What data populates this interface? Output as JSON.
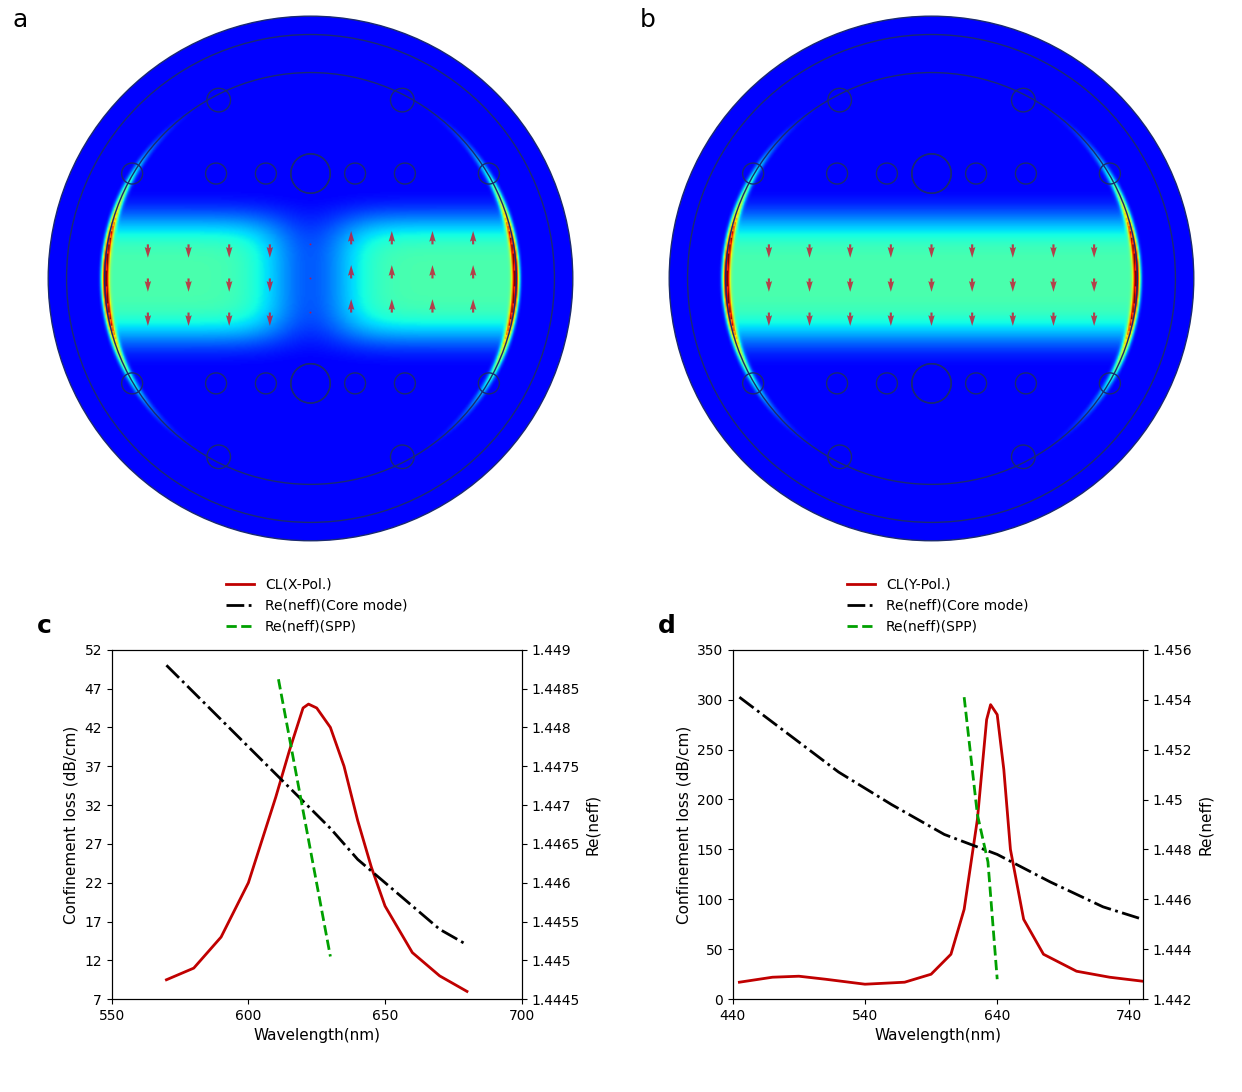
{
  "panel_labels": [
    "a",
    "b",
    "c",
    "d"
  ],
  "chart_data": [
    {
      "type": "line",
      "x_label": "Wavelength(nm)",
      "y_label": "Confinement loss (dB/cm)",
      "y2_label": "Re(neff)",
      "xlim": [
        550,
        700
      ],
      "xticks": [
        550,
        600,
        650,
        700
      ],
      "ylim": [
        7,
        52
      ],
      "yticks": [
        7,
        12,
        17,
        22,
        27,
        32,
        37,
        42,
        47,
        52
      ],
      "y2lim": [
        1.4445,
        1.449
      ],
      "y2ticks": [
        1.4445,
        1.445,
        1.4455,
        1.446,
        1.4465,
        1.447,
        1.4475,
        1.448,
        1.4485,
        1.449
      ],
      "grid": false,
      "legend": "top",
      "series": [
        {
          "name": "CL(X-Pol.)",
          "color": "#c00000",
          "line_style": "solid",
          "x": [
            570,
            580,
            590,
            600,
            610,
            615,
            620,
            622,
            625,
            630,
            635,
            640,
            645,
            650,
            660,
            670,
            680
          ],
          "values": [
            9.5,
            11,
            15,
            22,
            33,
            39,
            44.5,
            45,
            44.5,
            42,
            37,
            30,
            24,
            19,
            13,
            10,
            8
          ]
        },
        {
          "name": "Re(neff)(Core mode)",
          "color": "#000000",
          "line_style": "dashdot",
          "axis": "y2",
          "x": [
            570,
            580,
            590,
            600,
            610,
            620,
            630,
            640,
            650,
            660,
            670,
            680
          ],
          "values": [
            1.4488,
            1.44845,
            1.4481,
            1.44775,
            1.4474,
            1.44705,
            1.4467,
            1.4463,
            1.446,
            1.4457,
            1.4454,
            1.4452
          ]
        },
        {
          "name": "Re(neff)(SPP)",
          "color": "#00a000",
          "line_style": "dashed",
          "axis": "y2",
          "x": [
            611,
            630
          ],
          "values": [
            1.44862,
            1.44505
          ]
        }
      ]
    },
    {
      "type": "line",
      "x_label": "Wavelength(nm)",
      "y_label": "Confinement loss (dB/cm)",
      "y2_label": "Re(neff)",
      "xlim": [
        440,
        750
      ],
      "xticks": [
        440,
        540,
        640,
        740
      ],
      "ylim": [
        0,
        350
      ],
      "yticks": [
        0,
        50,
        100,
        150,
        200,
        250,
        300,
        350
      ],
      "y2lim": [
        1.442,
        1.456
      ],
      "y2ticks": [
        1.442,
        1.444,
        1.446,
        1.448,
        1.45,
        1.452,
        1.454,
        1.456
      ],
      "grid": false,
      "legend": "top",
      "series": [
        {
          "name": "CL(Y-Pol.)",
          "color": "#c00000",
          "line_style": "solid",
          "x": [
            445,
            470,
            490,
            510,
            540,
            570,
            590,
            605,
            615,
            625,
            632,
            635,
            640,
            645,
            650,
            660,
            675,
            700,
            725,
            750
          ],
          "values": [
            17,
            22,
            23,
            20,
            15,
            17,
            25,
            45,
            90,
            180,
            280,
            295,
            285,
            230,
            150,
            80,
            45,
            28,
            22,
            18
          ]
        },
        {
          "name": "Re(neff)(Core mode)",
          "color": "#000000",
          "line_style": "dashdot",
          "axis": "y2",
          "x": [
            445,
            480,
            520,
            560,
            600,
            640,
            680,
            720,
            750
          ],
          "values": [
            1.4541,
            1.4527,
            1.4511,
            1.4498,
            1.4486,
            1.4478,
            1.4467,
            1.4457,
            1.4452
          ]
        },
        {
          "name": "Re(neff)(SPP)",
          "color": "#00a000",
          "line_style": "dashed",
          "axis": "y2",
          "x": [
            615,
            625,
            633,
            640
          ],
          "values": [
            1.4541,
            1.4494,
            1.4475,
            1.4428
          ]
        }
      ]
    }
  ]
}
